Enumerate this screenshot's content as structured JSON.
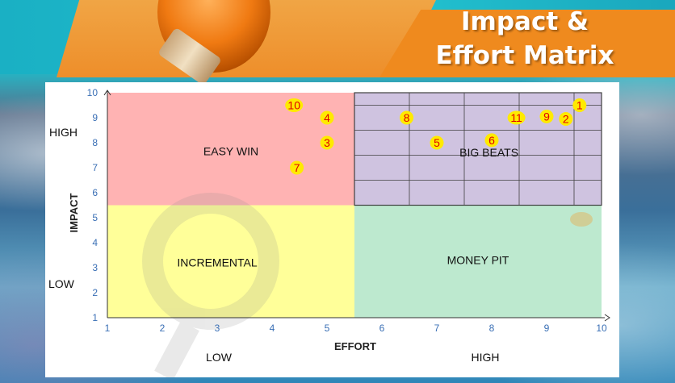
{
  "header": {
    "title_line1": "Impact &",
    "title_line2": "Effort Matrix"
  },
  "chart_data": {
    "type": "scatter",
    "title": "Impact & Effort Matrix",
    "xlabel": "EFFORT",
    "ylabel": "IMPACT",
    "xlim": [
      1,
      10
    ],
    "ylim": [
      1,
      10
    ],
    "x_ticks": [
      "1",
      "2",
      "3",
      "4",
      "5",
      "6",
      "7",
      "8",
      "9",
      "10"
    ],
    "y_ticks": [
      "1",
      "2",
      "3",
      "4",
      "5",
      "6",
      "7",
      "8",
      "9",
      "10"
    ],
    "y_side_labels": {
      "high": "HIGH",
      "low": "LOW"
    },
    "x_side_labels": {
      "low": "LOW",
      "high": "HIGH"
    },
    "quadrants": [
      {
        "label": "EASY WIN",
        "color": "#ffb3b3"
      },
      {
        "label": "BIG BEATS",
        "color": "#cfc3e0"
      },
      {
        "label": "INCREMENTAL",
        "color": "#ffff99"
      },
      {
        "label": "MONEY PIT",
        "color": "#bde9cf"
      }
    ],
    "points": [
      {
        "label": "1",
        "x": 9.6,
        "y": 9.5
      },
      {
        "label": "2",
        "x": 9.35,
        "y": 8.95
      },
      {
        "label": "3",
        "x": 5.0,
        "y": 8.0
      },
      {
        "label": "4",
        "x": 5.0,
        "y": 9.0
      },
      {
        "label": "5",
        "x": 7.0,
        "y": 8.0
      },
      {
        "label": "6",
        "x": 8.0,
        "y": 8.1
      },
      {
        "label": "7",
        "x": 4.45,
        "y": 7.0
      },
      {
        "label": "8",
        "x": 6.45,
        "y": 9.0
      },
      {
        "label": "9",
        "x": 9.0,
        "y": 9.05
      },
      {
        "label": "10",
        "x": 4.4,
        "y": 9.5
      },
      {
        "label": "11",
        "x": 8.45,
        "y": 9.0
      }
    ],
    "colors": {
      "marker": "#ffea00",
      "marker_text": "#e00000",
      "grid": "#404040"
    }
  }
}
